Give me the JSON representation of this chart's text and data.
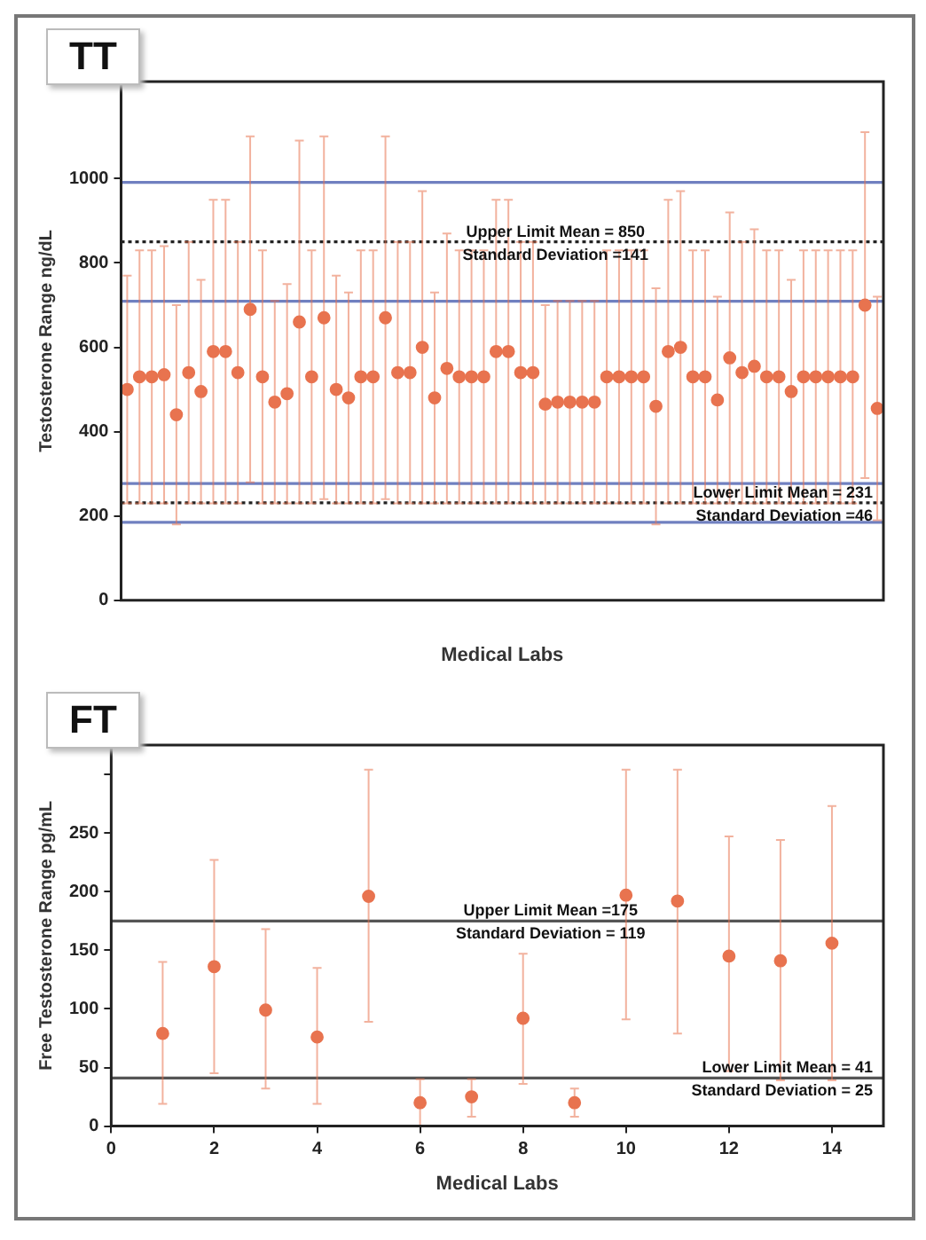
{
  "chart_data": [
    {
      "type": "scatter",
      "title": "TT",
      "xlabel": "Medical Labs",
      "ylabel": "Testosterone Range ng/dL",
      "categories": [
        null,
        null,
        null,
        null,
        null,
        null,
        null,
        null,
        null,
        null,
        null,
        null,
        null,
        null,
        null,
        null,
        null,
        null,
        null,
        null,
        null,
        null,
        null,
        null,
        null,
        null,
        null,
        null,
        null,
        null,
        null,
        null,
        null,
        null,
        null,
        null,
        null,
        null,
        null,
        null,
        null,
        null,
        null,
        null,
        null,
        null,
        null,
        null,
        null,
        null,
        null,
        null,
        null,
        null,
        null,
        null,
        null,
        null,
        null,
        null,
        null,
        null
      ],
      "series": [
        {
          "color": "#e8734f",
          "values": [
            500,
            530,
            530,
            535,
            440,
            540,
            495,
            590,
            590,
            540,
            690,
            530,
            470,
            490,
            660,
            530,
            670,
            500,
            480,
            530,
            530,
            670,
            540,
            540,
            600,
            480,
            550,
            530,
            530,
            530,
            590,
            590,
            540,
            540,
            465,
            470,
            470,
            470,
            470,
            530,
            530,
            530,
            530,
            460,
            590,
            600,
            530,
            530,
            475,
            575,
            540,
            555,
            530,
            530,
            495,
            530,
            530,
            530,
            530,
            530,
            700,
            455
          ],
          "errors": [
            [
              230,
              770
            ],
            [
              230,
              830
            ],
            [
              230,
              830
            ],
            [
              230,
              840
            ],
            [
              180,
              700
            ],
            [
              230,
              850
            ],
            [
              230,
              760
            ],
            [
              230,
              950
            ],
            [
              230,
              950
            ],
            [
              230,
              850
            ],
            [
              280,
              1100
            ],
            [
              230,
              830
            ],
            [
              230,
              710
            ],
            [
              230,
              750
            ],
            [
              230,
              1090
            ],
            [
              230,
              830
            ],
            [
              240,
              1100
            ],
            [
              230,
              770
            ],
            [
              230,
              730
            ],
            [
              230,
              830
            ],
            [
              230,
              830
            ],
            [
              240,
              1100
            ],
            [
              230,
              850
            ],
            [
              230,
              850
            ],
            [
              230,
              970
            ],
            [
              230,
              730
            ],
            [
              230,
              870
            ],
            [
              230,
              830
            ],
            [
              230,
              830
            ],
            [
              230,
              830
            ],
            [
              230,
              950
            ],
            [
              230,
              950
            ],
            [
              230,
              850
            ],
            [
              230,
              850
            ],
            [
              230,
              700
            ],
            [
              230,
              710
            ],
            [
              230,
              710
            ],
            [
              230,
              710
            ],
            [
              230,
              710
            ],
            [
              230,
              830
            ],
            [
              230,
              830
            ],
            [
              230,
              830
            ],
            [
              230,
              830
            ],
            [
              180,
              740
            ],
            [
              230,
              950
            ],
            [
              230,
              970
            ],
            [
              230,
              830
            ],
            [
              230,
              830
            ],
            [
              230,
              720
            ],
            [
              230,
              920
            ],
            [
              230,
              850
            ],
            [
              230,
              880
            ],
            [
              230,
              830
            ],
            [
              230,
              830
            ],
            [
              230,
              760
            ],
            [
              230,
              830
            ],
            [
              230,
              830
            ],
            [
              230,
              830
            ],
            [
              230,
              830
            ],
            [
              230,
              830
            ],
            [
              290,
              1110
            ],
            [
              190,
              720
            ]
          ]
        }
      ],
      "ylim": [
        0,
        1230
      ],
      "yticks": [
        0,
        200,
        400,
        600,
        800,
        1000
      ],
      "marker": "circle",
      "grid": false,
      "ref_lines": [
        {
          "axis": "y",
          "value": 850,
          "label": "Upper Limit Mean = 850",
          "color": "#222222",
          "line_style": "dotted"
        },
        {
          "axis": "y",
          "value": 991,
          "label": null,
          "color": "#7080c0",
          "line_style": "solid"
        },
        {
          "axis": "y",
          "value": 709,
          "label": null,
          "color": "#7080c0",
          "line_style": "solid"
        },
        {
          "axis": "y",
          "value": 231,
          "label": "Lower Limit Mean = 231",
          "color": "#222222",
          "line_style": "dotted"
        },
        {
          "axis": "y",
          "value": 277,
          "label": null,
          "color": "#7080c0",
          "line_style": "solid"
        },
        {
          "axis": "y",
          "value": 185,
          "label": null,
          "color": "#7080c0",
          "line_style": "solid"
        }
      ],
      "annotations": [
        {
          "text": "Standard Deviation =141",
          "y": 850
        },
        {
          "text": "Standard Deviation =46",
          "y": 231
        }
      ]
    },
    {
      "type": "scatter",
      "title": "FT",
      "xlabel": "Medical Labs",
      "ylabel": "Free Testosterone Range pg/mL",
      "x": [
        1,
        2,
        3,
        4,
        5,
        6,
        7,
        8,
        9,
        10,
        11,
        12,
        13,
        14
      ],
      "series": [
        {
          "color": "#e8734f",
          "values": [
            79,
            136,
            99,
            76,
            196,
            20,
            25,
            92,
            20,
            197,
            192,
            145,
            141,
            156
          ],
          "errors": [
            [
              19,
              140
            ],
            [
              45,
              227
            ],
            [
              32,
              168
            ],
            [
              19,
              135
            ],
            [
              89,
              304
            ],
            [
              0,
              40
            ],
            [
              8,
              40
            ],
            [
              36,
              147
            ],
            [
              8,
              32
            ],
            [
              91,
              304
            ],
            [
              79,
              304
            ],
            [
              47,
              247
            ],
            [
              39,
              244
            ],
            [
              39,
              273
            ]
          ]
        }
      ],
      "xlim": [
        0,
        15
      ],
      "xticks": [
        0,
        2,
        4,
        6,
        8,
        10,
        12,
        14
      ],
      "ylim": [
        0,
        325
      ],
      "yticks": [
        0,
        50,
        100,
        150,
        200,
        250,
        {
          "value": 300,
          "label": null
        }
      ],
      "marker": "circle",
      "grid": false,
      "ref_lines": [
        {
          "axis": "y",
          "value": 175,
          "label": "Upper Limit Mean =175",
          "color": "#555555",
          "line_style": "solid"
        },
        {
          "axis": "y",
          "value": 41,
          "label": "Lower Limit Mean = 41",
          "color": "#555555",
          "line_style": "solid"
        }
      ],
      "annotations": [
        {
          "text": "Standard Deviation = 119",
          "y": 175
        },
        {
          "text": "Standard Deviation = 25",
          "y": 41
        }
      ]
    }
  ]
}
